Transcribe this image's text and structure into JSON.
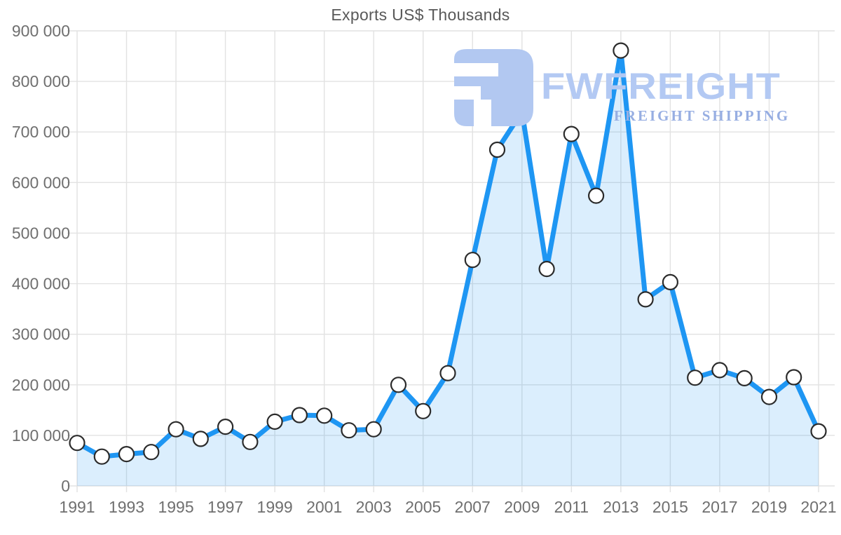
{
  "page": {
    "background": "#ffffff"
  },
  "chart_data": {
    "type": "line",
    "title": "Exports US$ Thousands",
    "series_name": "Exports US$ Thousands",
    "x": [
      1991,
      1992,
      1993,
      1994,
      1995,
      1996,
      1997,
      1998,
      1999,
      2000,
      2001,
      2002,
      2003,
      2004,
      2005,
      2006,
      2007,
      2008,
      2009,
      2010,
      2011,
      2012,
      2013,
      2014,
      2015,
      2016,
      2017,
      2018,
      2019,
      2020,
      2021
    ],
    "values": [
      85000,
      58000,
      63000,
      67000,
      112000,
      93000,
      117000,
      87000,
      127000,
      140000,
      139000,
      110000,
      112000,
      200000,
      148000,
      223000,
      447000,
      665000,
      740000,
      429000,
      696000,
      574000,
      861000,
      369000,
      403000,
      214000,
      229000,
      213000,
      176000,
      215000,
      108000
    ],
    "xlabel": "",
    "ylabel": "",
    "ylim": [
      0,
      900000
    ],
    "ytick_step": 100000,
    "ytick_labels": [
      "0",
      "100 000",
      "200 000",
      "300 000",
      "400 000",
      "500 000",
      "600 000",
      "700 000",
      "800 000",
      "900 000"
    ],
    "xtick_years": [
      1991,
      1993,
      1995,
      1997,
      1999,
      2001,
      2003,
      2005,
      2007,
      2009,
      2011,
      2013,
      2015,
      2017,
      2019,
      2021
    ],
    "grid": true,
    "legend": false,
    "marker": "circle",
    "styles": {
      "line_color": "#1e96f3",
      "area_color": "rgba(33,150,243,0.16)",
      "marker_fill": "#ffffff",
      "marker_stroke": "#2b2b2b",
      "grid_color": "#e2e2e2",
      "axis_label_color": "#6f6f6f",
      "title_color": "#595959"
    }
  },
  "watermark": {
    "brand": "FWFREIGHT",
    "tagline": "FREIGHT SHIPPING",
    "icon": "fwfreight-logo-icon",
    "brand_color": "#b3c9f3",
    "tagline_color": "#97aee2",
    "icon_color": "#b2c8f1"
  }
}
